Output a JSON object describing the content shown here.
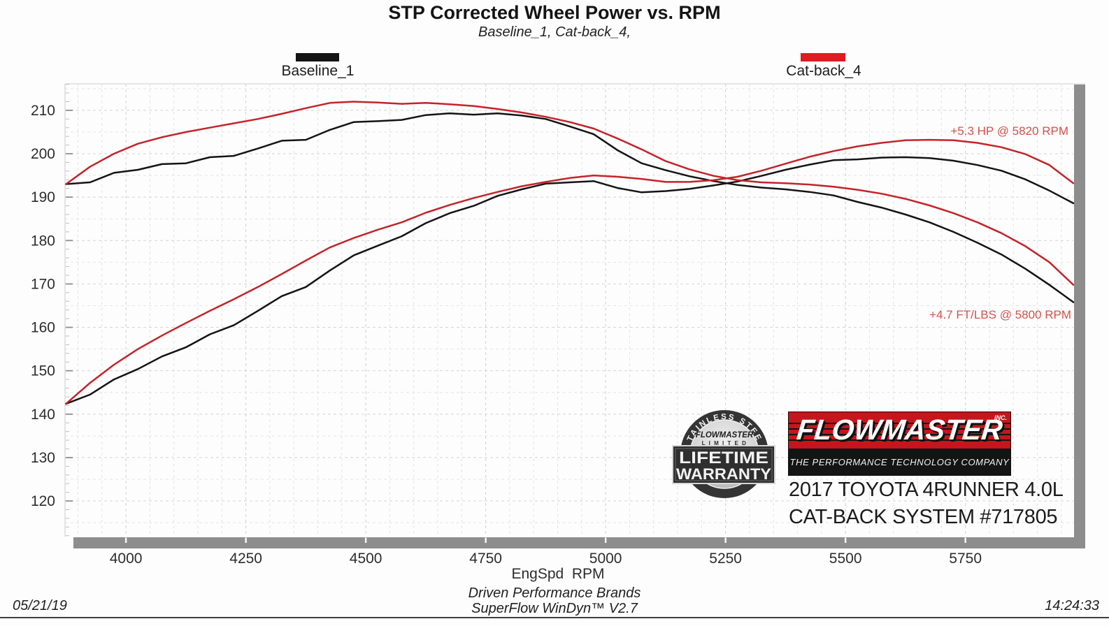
{
  "title": "STP Corrected Wheel Power vs. RPM",
  "subtitle": "Baseline_1, Cat-back_4,",
  "legend": [
    {
      "label": "Baseline_1",
      "color": "#141414"
    },
    {
      "label": "Cat-back_4",
      "color": "#e01b22"
    }
  ],
  "annotations": [
    {
      "text": "+5.3 HP @ 5820 RPM",
      "color": "#d2524c"
    },
    {
      "text": "+4.7 FT/LBS @ 5800 RPM",
      "color": "#d2524c"
    }
  ],
  "branding": {
    "badge": {
      "arc_text": "STAINLESS STEEL",
      "brand": "FLOWMASTER",
      "limited": "L I M I T E D",
      "line1": "LIFETIME",
      "line2": "WARRANTY"
    },
    "logo": {
      "brand": "FLOWMASTER",
      "inc": "INC.",
      "tagline": "THE PERFORMANCE TECHNOLOGY COMPANY",
      "red": "#c4161c",
      "black": "#141414"
    },
    "vehicle_line1": "2017 TOYOTA 4RUNNER 4.0L",
    "vehicle_line2": "CAT-BACK SYSTEM #717805"
  },
  "footer": {
    "date": "05/21/19",
    "center_line1": "Driven Performance Brands",
    "center_line2": "SuperFlow WinDyn™  V2.7",
    "time": "14:24:33"
  },
  "chart_data": {
    "type": "line",
    "title": "STP Corrected Wheel Power vs. RPM",
    "xlabel": "EngSpd  RPM",
    "ylabel": "",
    "x_ticks": [
      4000,
      4250,
      4500,
      4750,
      5000,
      5250,
      5500,
      5750
    ],
    "y_ticks": [
      210,
      200,
      190,
      180,
      170,
      160,
      150,
      140,
      130,
      120
    ],
    "x_range": [
      3873,
      5975
    ],
    "y_range": [
      111.8,
      216.1
    ],
    "grid": "dashed",
    "legend_position": "top",
    "x": [
      3875,
      3925,
      3975,
      4025,
      4075,
      4125,
      4175,
      4225,
      4275,
      4325,
      4375,
      4425,
      4475,
      4525,
      4575,
      4625,
      4675,
      4725,
      4775,
      4825,
      4875,
      4925,
      4975,
      5025,
      5075,
      5125,
      5175,
      5225,
      5275,
      5325,
      5375,
      5425,
      5475,
      5525,
      5575,
      5625,
      5675,
      5725,
      5775,
      5825,
      5875,
      5925,
      5975
    ],
    "series": [
      {
        "name": "Baseline_1 HP",
        "color": "#141414",
        "values": [
          142.4,
          144.5,
          148.0,
          150.4,
          153.3,
          155.4,
          158.4,
          160.5,
          163.8,
          167.2,
          169.3,
          173.1,
          176.6,
          178.8,
          181.0,
          184.0,
          186.3,
          188.0,
          190.3,
          191.8,
          193.1,
          193.4,
          193.7,
          192.1,
          191.1,
          191.4,
          191.9,
          192.7,
          193.6,
          194.9,
          196.3,
          197.5,
          198.5,
          198.7,
          199.1,
          199.2,
          199.0,
          198.4,
          197.4,
          196.1,
          194.1,
          191.5,
          188.6
        ]
      },
      {
        "name": "Baseline_1 FT/LBS",
        "color": "#141414",
        "values": [
          193.0,
          193.4,
          195.6,
          196.3,
          197.6,
          197.8,
          199.2,
          199.5,
          201.2,
          203.0,
          203.2,
          205.5,
          207.3,
          207.5,
          207.8,
          208.9,
          209.3,
          209.0,
          209.3,
          208.8,
          208.0,
          206.3,
          204.5,
          200.8,
          197.8,
          196.2,
          194.8,
          193.7,
          192.8,
          192.2,
          191.8,
          191.2,
          190.4,
          188.9,
          187.6,
          186.0,
          184.2,
          182.0,
          179.5,
          176.8,
          173.5,
          169.8,
          165.8
        ]
      },
      {
        "name": "Cat-back_4 HP",
        "color": "#c3242a",
        "values": [
          142.4,
          147.2,
          151.4,
          155.0,
          158.1,
          161.0,
          163.8,
          166.5,
          169.3,
          172.3,
          175.4,
          178.4,
          180.6,
          182.5,
          184.2,
          186.4,
          188.2,
          189.8,
          191.2,
          192.5,
          193.5,
          194.4,
          195.0,
          194.7,
          194.2,
          193.5,
          193.5,
          193.9,
          194.7,
          196.1,
          197.7,
          199.3,
          200.6,
          201.7,
          202.5,
          203.1,
          203.2,
          203.1,
          202.5,
          201.5,
          199.9,
          197.4,
          193.2
        ]
      },
      {
        "name": "Cat-back_4 FT/LBS",
        "color": "#c3242a",
        "values": [
          193.0,
          197.0,
          200.0,
          202.3,
          203.8,
          205.0,
          206.0,
          207.0,
          208.0,
          209.2,
          210.5,
          211.7,
          212.0,
          211.8,
          211.5,
          211.7,
          211.4,
          211.0,
          210.3,
          209.5,
          208.5,
          207.3,
          205.8,
          203.5,
          201.0,
          198.3,
          196.4,
          194.9,
          193.9,
          193.4,
          193.2,
          192.9,
          192.4,
          191.7,
          190.8,
          189.6,
          188.1,
          186.3,
          184.2,
          181.7,
          178.7,
          175.0,
          169.8
        ]
      }
    ]
  }
}
